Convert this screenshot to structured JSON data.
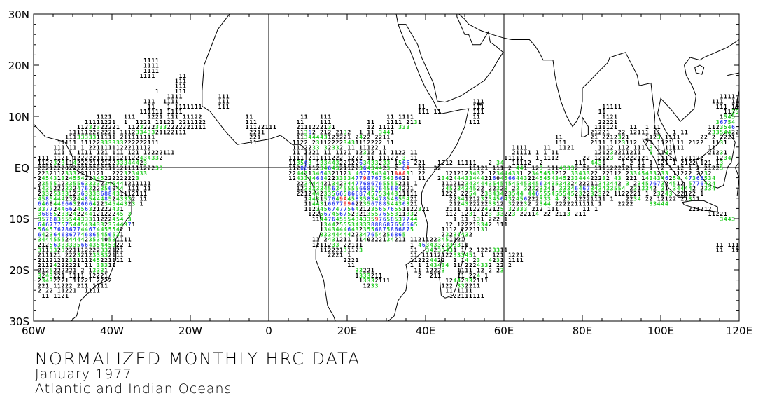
{
  "title": {
    "line1": "NORMALIZED MONTHLY HRC DATA",
    "line2": "January 1977",
    "line3": "Atlantic and Indian Oceans"
  },
  "axes": {
    "lat_labels": [
      {
        "lat": 30,
        "text": "30N"
      },
      {
        "lat": 20,
        "text": "20N"
      },
      {
        "lat": 10,
        "text": "10N"
      },
      {
        "lat": 0,
        "text": "EQ"
      },
      {
        "lat": -10,
        "text": "10S"
      },
      {
        "lat": -20,
        "text": "20S"
      },
      {
        "lat": -30,
        "text": "30S"
      }
    ],
    "lon_labels": [
      {
        "lon": -60,
        "text": "60W"
      },
      {
        "lon": -40,
        "text": "40W"
      },
      {
        "lon": -20,
        "text": "20W"
      },
      {
        "lon": 0,
        "text": "0"
      },
      {
        "lon": 20,
        "text": "20E"
      },
      {
        "lon": 40,
        "text": "40E"
      },
      {
        "lon": 60,
        "text": "60E"
      },
      {
        "lon": 80,
        "text": "80E"
      },
      {
        "lon": 100,
        "text": "100E"
      },
      {
        "lon": 120,
        "text": "120E"
      }
    ],
    "lon_range": [
      -60,
      120
    ],
    "lat_range": [
      -30,
      30
    ],
    "grid_lons": [
      0,
      60
    ],
    "grid_lats": [
      0
    ]
  },
  "colors": {
    "low": "#000000",
    "mid": "#22cc22",
    "high": "#3344ee",
    "extreme": "#ee3333",
    "coast": "#000000"
  },
  "hrc_rows": [
    [
      21,
      [
        [
          -32,
          "1111"
        ]
      ]
    ],
    [
      20,
      [
        [
          -32,
          "1111"
        ]
      ]
    ],
    [
      19,
      [
        [
          -32,
          "1111"
        ]
      ]
    ],
    [
      18,
      [
        [
          -33,
          "1111"
        ],
        [
          -23,
          "11"
        ]
      ]
    ],
    [
      17,
      [
        [
          -24,
          "111"
        ]
      ]
    ],
    [
      16,
      [
        [
          -24,
          "111"
        ]
      ]
    ],
    [
      15,
      [
        [
          -24,
          "111"
        ],
        [
          -29,
          "1"
        ]
      ]
    ],
    [
      14,
      [
        [
          -26,
          "1111"
        ],
        [
          -13,
          "111"
        ],
        [
          115,
          "1111"
        ]
      ]
    ],
    [
      13,
      [
        [
          -32,
          "111"
        ],
        [
          -27,
          "1111"
        ],
        [
          -13,
          "111"
        ],
        [
          52,
          "111"
        ],
        [
          113,
          "111"
        ],
        [
          118,
          "11"
        ]
      ]
    ],
    [
      12,
      [
        [
          -31,
          "11"
        ],
        [
          -26,
          "1 1111111"
        ],
        [
          -13,
          "111"
        ],
        [
          38,
          "11"
        ],
        [
          52,
          "111"
        ],
        [
          85,
          "11111"
        ],
        [
          114,
          "111"
        ],
        [
          118,
          "112"
        ]
      ]
    ],
    [
      11,
      [
        [
          -33,
          "111111 1111"
        ],
        [
          38,
          "111 11"
        ],
        [
          52,
          "111"
        ],
        [
          84,
          "11"
        ],
        [
          116,
          "11353"
        ]
      ]
    ],
    [
      10,
      [
        [
          -44,
          "1121   111   1221 111 11122"
        ],
        [
          -6,
          "11"
        ],
        [
          8,
          "11"
        ],
        [
          13,
          "111"
        ],
        [
          30,
          "11 1111"
        ],
        [
          52,
          "11"
        ],
        [
          85,
          "1121"
        ],
        [
          115,
          "1545"
        ]
      ]
    ],
    [
      9,
      [
        [
          -47,
          "11111221  1  1221 11121 2211122"
        ],
        [
          -6,
          "111"
        ],
        [
          7,
          "11"
        ],
        [
          13,
          "111"
        ],
        [
          25,
          "11"
        ],
        [
          30,
          "1111 2131"
        ],
        [
          51,
          "111"
        ],
        [
          84,
          "22221"
        ],
        [
          114,
          "36754"
        ]
      ]
    ],
    [
      8,
      [
        [
          -49,
          "11232322221  11232223332222221111"
        ],
        [
          -6,
          "11122111"
        ],
        [
          7,
          "2111222131"
        ],
        [
          25,
          "12 1111"
        ],
        [
          33,
          "333"
        ],
        [
          83,
          "111121"
        ],
        [
          92,
          "11"
        ],
        [
          96,
          "1 11"
        ],
        [
          112,
          "1123546"
        ]
      ]
    ],
    [
      7,
      [
        [
          -51,
          "111112222221 11123343321122111"
        ],
        [
          -5,
          "2211"
        ],
        [
          7,
          "11362 212 2132"
        ],
        [
          23,
          "1 11 3441"
        ],
        [
          82,
          "21221"
        ],
        [
          89,
          "22 1"
        ],
        [
          93,
          "2111 11"
        ],
        [
          103,
          "1 11"
        ],
        [
          112,
          "23354422"
        ]
      ]
    ],
    [
      6,
      [
        [
          -52,
          "1113333311111 211111111"
        ],
        [
          -5,
          "221"
        ],
        [
          7,
          "11344443122221 2422 2211"
        ],
        [
          73,
          "11"
        ],
        [
          82,
          "21 221"
        ],
        [
          88,
          "2321"
        ],
        [
          96,
          "1123 1111"
        ],
        [
          110,
          "22 2 2221"
        ]
      ]
    ],
    [
      5,
      [
        [
          -54,
          "11111 11122333333222222111"
        ],
        [
          -5,
          "11"
        ],
        [
          6,
          "1122 231122223431112222 11"
        ],
        [
          73,
          "111"
        ],
        [
          82,
          "2111"
        ],
        [
          87,
          "1123112"
        ],
        [
          96,
          "21 1121"
        ],
        [
          104,
          "11 2122"
        ],
        [
          113,
          "1131"
        ]
      ]
    ],
    [
      4,
      [
        [
          -55,
          "111 11 1 2211111122211112"
        ],
        [
          6,
          "1112233 32332 11 11122 1"
        ],
        [
          62,
          "1111"
        ],
        [
          70,
          "11  1121"
        ],
        [
          84,
          "1112 112 111"
        ],
        [
          97,
          "3 1 1111"
        ],
        [
          105,
          "1"
        ],
        [
          112,
          "11"
        ]
      ]
    ],
    [
      3,
      [
        [
          -55,
          "111 1 1111 121 111 121 12222111"
        ],
        [
          6,
          "11 2221 11 1121 12312 11 1122 11"
        ],
        [
          62,
          "21111"
        ],
        [
          68,
          "1 1 11"
        ],
        [
          83,
          "121232211211"
        ],
        [
          97,
          "3 1132"
        ],
        [
          112,
          "21231"
        ]
      ]
    ],
    [
      2,
      [
        [
          -59,
          "111 1121 12222211111121122434332"
        ],
        [
          5,
          "1111 211111222 1222 11 11122 3 11"
        ],
        [
          60,
          "11111"
        ],
        [
          68,
          "1 1112"
        ],
        [
          80,
          "22 12123 22222121"
        ],
        [
          99,
          "11112 121122"
        ],
        [
          114,
          "1234"
        ]
      ]
    ],
    [
      1,
      [
        [
          -59,
          "1122323114222211212233344423"
        ],
        [
          5,
          "113563 1334432212263433233 1566 221"
        ],
        [
          43,
          "1212 11111"
        ],
        [
          56,
          "2 34  11112  2"
        ],
        [
          78,
          "111 4431"
        ],
        [
          90,
          "1 2 11 1 121 1 2122 121 13"
        ]
      ]
    ],
    [
      0,
      [
        [
          -59,
          "22212220222212222111121111122233"
        ],
        [
          5,
          "11286112346432112236434423 2 6A  21  22"
        ],
        [
          51,
          "11121 111 2 441 123 11143332 22 1111222121 12 1  2 1 12 1 2 21225"
        ]
      ]
    ],
    [
      -1,
      [
        [
          -59,
          "22321123332211121  222323433"
        ],
        [
          5,
          "2244313464321123 4677543411AAA31 22"
        ],
        [
          45,
          "1212123432 123444331 2345453212 3343322 22112 23345433233 11222 2232"
        ]
      ]
    ],
    [
      -2,
      [
        [
          -59,
          "24543132455422345222222223"
        ],
        [
          5,
          "1243344684223333477987675436621  11"
        ],
        [
          43,
          "23424443344421604566443224545434523344422232 43 221 1434346254 47368534"
        ]
      ]
    ],
    [
      -3,
      [
        [
          -59,
          "23555123355633332345441211111"
        ],
        [
          7,
          "22344442134234477686765555211 1"
        ],
        [
          44,
          "1112123434443545454545345634353432422211343442 3 2345767324512 5776434"
        ]
      ]
    ],
    [
      -4,
      [
        [
          -59,
          "1435222332476322356044 111 11"
        ],
        [
          7,
          "123333345634555566857645684221"
        ],
        [
          44,
          "24523434522 22323 23 32323341 33346467343433554 2313342 31 344442 2334"
        ]
      ]
    ],
    [
      -5,
      [
        [
          -59,
          "2332533312563333688431112111"
        ],
        [
          7,
          "2212442335665866874575344311111"
        ],
        [
          44,
          "1222 2254 23343423544 446555455545232232322 1122221 1 23243 22122 1"
        ]
      ]
    ],
    [
      -6,
      [
        [
          -59,
          "4585444232448544485243332 11"
        ],
        [
          9,
          "1443157649A458358347854855421"
        ],
        [
          46,
          "22341212323456432456222333 4 23 12221111 1   2234 22 12122 21311"
        ]
      ]
    ],
    [
      -7,
      [
        [
          -59,
          "6460446663266642234544323 1"
        ],
        [
          9,
          "11443166779962235678854436321"
        ],
        [
          46,
          "21243222223312 322232 2344 2222211111 1    2222    33444"
        ]
      ]
    ],
    [
      -8,
      [
        [
          -59,
          "3377244662456321222431"
        ],
        [
          9,
          "11234567477564212356576551122321"
        ],
        [
          45,
          "2111 1122242125 32333 212 111  1   11 1"
        ],
        [
          107,
          "221212"
        ]
      ]
    ],
    [
      -9,
      [
        [
          -59,
          "3686523324224412122245 3"
        ],
        [
          10,
          "1225674567523213557655311332"
        ],
        [
          45,
          "112 1231 123 33223 22114 22 2113 211"
        ],
        [
          112,
          "11221"
        ]
      ]
    ],
    [
      -10,
      [
        [
          -59,
          "3576835554433311222454 3"
        ],
        [
          11,
          "114476455543433597658537744"
        ],
        [
          47,
          "1 11 131 222 1"
        ],
        [
          115,
          "3443"
        ]
      ]
    ],
    [
      -11,
      [
        [
          -59,
          "6467775754454343323544371"
        ],
        [
          13,
          "1344255534333888687656665"
        ],
        [
          45,
          "12 122213342 111"
        ]
      ]
    ],
    [
      -12,
      [
        [
          -59,
          "5645767867744674455542 1"
        ],
        [
          13,
          "134344464323556875866875"
        ],
        [
          44,
          "1112 2221131"
        ]
      ]
    ],
    [
      -13,
      [
        [
          -59,
          "6423646867746865456531"
        ],
        [
          13,
          "3334444422347654256865"
        ],
        [
          44,
          "23234432"
        ]
      ]
    ],
    [
      -14,
      [
        [
          -59,
          "344455524444235340531111"
        ],
        [
          11,
          "11 2431211 1140222134211"
        ],
        [
          36,
          "11211223451121"
        ]
      ]
    ],
    [
      -15,
      [
        [
          -59,
          "2125633333566435445322 1"
        ],
        [
          11,
          "1211233 22111"
        ],
        [
          36,
          "1 4634332333311"
        ],
        [
          114,
          "11 1111"
        ]
      ]
    ],
    [
      -16,
      [
        [
          -59,
          "3113323221112222332121"
        ],
        [
          13,
          "11222131123"
        ],
        [
          36,
          "11  34233431 1 2 12223311"
        ],
        [
          114,
          "11  11"
        ]
      ]
    ],
    [
      -17,
      [
        [
          -59,
          "211121 222321233332111"
        ],
        [
          15,
          "2221 1"
        ],
        [
          36,
          "11 11112122333451 1  121 1221"
        ]
      ]
    ],
    [
      -18,
      [
        [
          -59,
          "2112121231111245221111 1"
        ],
        [
          19,
          "2221"
        ],
        [
          36,
          "112224422  1 14 23  4231 1111"
        ]
      ]
    ],
    [
      -19,
      [
        [
          -59,
          "21124222221 11 33311"
        ],
        [
          20,
          "11"
        ],
        [
          36,
          "1 1 143434 11 2224332 22 2"
        ]
      ]
    ],
    [
      -20,
      [
        [
          -59,
          "2125222221 2 13331"
        ],
        [
          22,
          "33221"
        ],
        [
          37,
          "11 12223   1111 12 2 23"
        ]
      ]
    ],
    [
      -21,
      [
        [
          -59,
          "3243221 1111 12221"
        ],
        [
          22,
          "1333211"
        ],
        [
          38,
          "2  211    11 224 1"
        ]
      ]
    ],
    [
      -22,
      [
        [
          -59,
          "23432221 11221 2222"
        ],
        [
          23,
          "13332111"
        ],
        [
          45,
          "12442332111"
        ]
      ]
    ],
    [
      -23,
      [
        [
          -59,
          "221 11222 211 1111"
        ],
        [
          24,
          "1233"
        ],
        [
          44,
          "122 332211"
        ]
      ]
    ],
    [
      -24,
      [
        [
          -59,
          "2 22 11221  1111"
        ],
        [
          45,
          "11 1111"
        ]
      ]
    ],
    [
      -25,
      [
        [
          -58,
          "11 1121"
        ],
        [
          46,
          "122111111"
        ]
      ]
    ]
  ]
}
